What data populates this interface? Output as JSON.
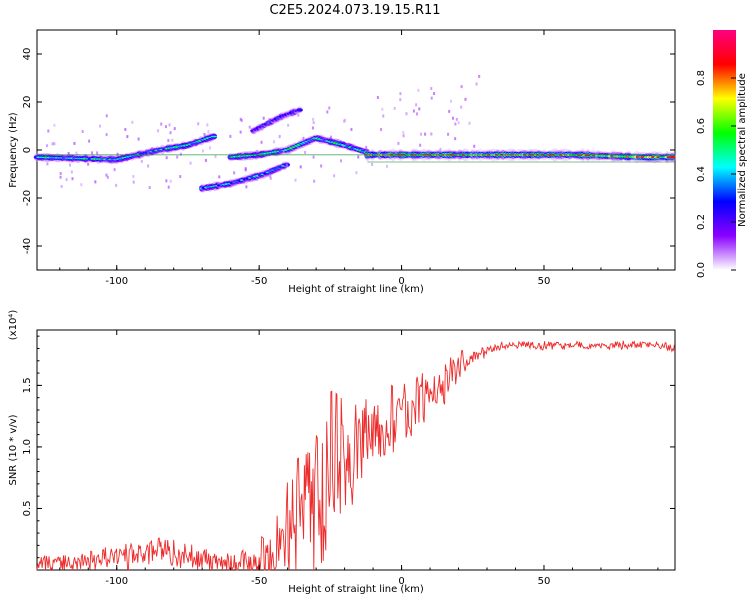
{
  "title": "C2E5.2024.073.19.15.R11",
  "chart_data": [
    {
      "type": "heatmap",
      "xlabel": "Height of straight line (km)",
      "ylabel": "Frequency (Hz)",
      "xlim": [
        -128,
        96
      ],
      "ylim": [
        -50,
        50
      ],
      "xticks": [
        -100,
        -50,
        0,
        50
      ],
      "yticks": [
        -40,
        -20,
        0,
        20,
        40
      ],
      "colorbar": {
        "label": "Normalized spectral amplitude",
        "range": [
          0,
          1
        ],
        "ticks": [
          "0.0",
          "0.2",
          "0.4",
          "0.6",
          "0.8"
        ],
        "colors": [
          "#ffffff",
          "#8a00ff",
          "#0000ff",
          "#00ffff",
          "#00ff00",
          "#ffff00",
          "#ff0000",
          "#ff0080"
        ]
      },
      "ridges": [
        {
          "name": "main",
          "points": [
            [
              -128,
              -3
            ],
            [
              -100,
              -4
            ],
            [
              -85,
              0
            ],
            [
              -75,
              2
            ],
            [
              -65,
              6
            ]
          ],
          "amp": 0.55
        },
        {
          "name": "lower",
          "points": [
            [
              -70,
              -16
            ],
            [
              -60,
              -14
            ],
            [
              -48,
              -10
            ],
            [
              -40,
              -6
            ]
          ],
          "amp": 0.5
        },
        {
          "name": "middle",
          "points": [
            [
              -60,
              -3
            ],
            [
              -50,
              -2
            ],
            [
              -40,
              0
            ],
            [
              -30,
              5
            ],
            [
              -20,
              2
            ],
            [
              -12,
              -1
            ]
          ],
          "amp": 0.6
        },
        {
          "name": "upper",
          "points": [
            [
              -52,
              8
            ],
            [
              -42,
              14
            ],
            [
              -35,
              17
            ]
          ],
          "amp": 0.35
        },
        {
          "name": "flat",
          "points": [
            [
              -12,
              -2
            ],
            [
              20,
              -2
            ],
            [
              60,
              -2
            ],
            [
              85,
              -3
            ],
            [
              96,
              -3
            ]
          ],
          "amp": 0.95
        }
      ]
    },
    {
      "type": "line",
      "xlabel": "Height of straight line (km)",
      "ylabel": "SNR (10 * v/v)",
      "multiplier": "(x10⁴)",
      "xlim": [
        -128,
        96
      ],
      "ylim": [
        0,
        1.95
      ],
      "xticks": [
        -100,
        -50,
        0,
        50
      ],
      "yticks": [
        "0.5",
        "1.0",
        "1.5"
      ],
      "color": "#ee2b2b",
      "envelope": [
        [
          -128,
          0.05
        ],
        [
          -105,
          0.1
        ],
        [
          -85,
          0.18
        ],
        [
          -70,
          0.1
        ],
        [
          -55,
          0.05
        ],
        [
          -45,
          0.15
        ],
        [
          -35,
          0.7
        ],
        [
          -25,
          0.9
        ],
        [
          -15,
          1.05
        ],
        [
          -5,
          1.25
        ],
        [
          5,
          1.4
        ],
        [
          15,
          1.55
        ],
        [
          25,
          1.75
        ],
        [
          35,
          1.82
        ],
        [
          50,
          1.83
        ],
        [
          70,
          1.83
        ],
        [
          90,
          1.84
        ],
        [
          96,
          1.8
        ]
      ],
      "noise": [
        [
          -128,
          0.06
        ],
        [
          -90,
          0.1
        ],
        [
          -60,
          0.08
        ],
        [
          -45,
          0.2
        ],
        [
          -35,
          0.55
        ],
        [
          -25,
          0.6
        ],
        [
          -15,
          0.35
        ],
        [
          0,
          0.25
        ],
        [
          20,
          0.12
        ],
        [
          30,
          0.03
        ],
        [
          96,
          0.03
        ]
      ]
    }
  ]
}
